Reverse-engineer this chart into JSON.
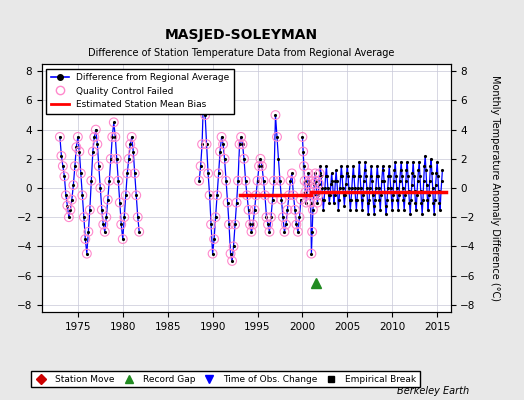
{
  "title": "MASJED-SOLEYMAN",
  "subtitle": "Difference of Station Temperature Data from Regional Average",
  "ylabel": "Monthly Temperature Anomaly Difference (°C)",
  "xlabel_note": "Berkeley Earth",
  "xlim": [
    1971.0,
    2016.5
  ],
  "ylim": [
    -8.5,
    8.5
  ],
  "yticks": [
    -8,
    -6,
    -4,
    -2,
    0,
    2,
    4,
    6,
    8
  ],
  "xticks": [
    1975,
    1980,
    1985,
    1990,
    1995,
    2000,
    2005,
    2010,
    2015
  ],
  "background_color": "#e8e8e8",
  "plot_bg_color": "#ffffff",
  "grid_color": "#c8c8d8",
  "mean_bias_start_1": 1993.0,
  "mean_bias_end_1": 2001.0,
  "mean_bias_value_1": -0.5,
  "mean_bias_start_2": 2001.0,
  "mean_bias_end_2": 2016.0,
  "mean_bias_value_2": -0.3,
  "record_gap_x": 2001.5,
  "record_gap_y": -6.5,
  "data_early": [
    [
      1973.0,
      3.5
    ],
    [
      1973.17,
      2.2
    ],
    [
      1973.33,
      1.5
    ],
    [
      1973.5,
      0.8
    ],
    [
      1973.67,
      -0.5
    ],
    [
      1973.83,
      -1.2
    ],
    [
      1974.0,
      -2.0
    ],
    [
      1974.17,
      -1.5
    ],
    [
      1974.33,
      -0.8
    ],
    [
      1974.5,
      0.2
    ],
    [
      1974.67,
      1.5
    ],
    [
      1974.83,
      2.8
    ],
    [
      1975.0,
      3.5
    ],
    [
      1975.17,
      2.5
    ],
    [
      1975.33,
      1.0
    ],
    [
      1975.5,
      -0.5
    ],
    [
      1975.67,
      -2.0
    ],
    [
      1975.83,
      -3.5
    ],
    [
      1976.0,
      -4.5
    ],
    [
      1976.17,
      -3.0
    ],
    [
      1976.33,
      -1.5
    ],
    [
      1976.5,
      0.5
    ],
    [
      1976.67,
      2.5
    ],
    [
      1976.83,
      3.5
    ],
    [
      1977.0,
      4.0
    ],
    [
      1977.17,
      3.0
    ],
    [
      1977.33,
      1.5
    ],
    [
      1977.5,
      0.0
    ],
    [
      1977.67,
      -1.5
    ],
    [
      1977.83,
      -2.5
    ],
    [
      1978.0,
      -3.0
    ],
    [
      1978.17,
      -2.0
    ],
    [
      1978.33,
      -0.8
    ],
    [
      1978.5,
      0.5
    ],
    [
      1978.67,
      2.0
    ],
    [
      1978.83,
      3.5
    ],
    [
      1979.0,
      4.5
    ],
    [
      1979.17,
      3.5
    ],
    [
      1979.33,
      2.0
    ],
    [
      1979.5,
      0.5
    ],
    [
      1979.67,
      -1.0
    ],
    [
      1979.83,
      -2.5
    ],
    [
      1980.0,
      -3.5
    ],
    [
      1980.17,
      -2.0
    ],
    [
      1980.33,
      -0.5
    ],
    [
      1980.5,
      1.0
    ],
    [
      1980.67,
      2.0
    ],
    [
      1980.83,
      3.0
    ],
    [
      1981.0,
      3.5
    ],
    [
      1981.17,
      2.5
    ],
    [
      1981.33,
      1.0
    ],
    [
      1981.5,
      -0.5
    ],
    [
      1981.67,
      -2.0
    ],
    [
      1981.83,
      -3.0
    ]
  ],
  "data_mid1": [
    [
      1988.5,
      0.5
    ],
    [
      1988.67,
      1.5
    ],
    [
      1988.83,
      3.0
    ],
    [
      1989.0,
      6.5
    ],
    [
      1989.17,
      5.0
    ],
    [
      1989.33,
      3.0
    ],
    [
      1989.5,
      1.0
    ],
    [
      1989.67,
      -0.5
    ],
    [
      1989.83,
      -2.5
    ],
    [
      1990.0,
      -4.5
    ],
    [
      1990.17,
      -3.5
    ],
    [
      1990.33,
      -2.0
    ],
    [
      1990.5,
      -0.5
    ],
    [
      1990.67,
      1.0
    ],
    [
      1990.83,
      2.5
    ],
    [
      1991.0,
      3.5
    ],
    [
      1991.17,
      3.0
    ],
    [
      1991.33,
      2.0
    ],
    [
      1991.5,
      0.5
    ],
    [
      1991.67,
      -1.0
    ],
    [
      1991.83,
      -2.5
    ],
    [
      1992.0,
      -4.5
    ],
    [
      1992.17,
      -5.0
    ],
    [
      1992.33,
      -4.0
    ],
    [
      1992.5,
      -2.5
    ],
    [
      1992.67,
      -1.0
    ],
    [
      1992.83,
      0.5
    ],
    [
      1993.0,
      3.0
    ],
    [
      1993.17,
      3.5
    ],
    [
      1993.33,
      3.0
    ],
    [
      1993.5,
      2.0
    ],
    [
      1993.67,
      0.5
    ],
    [
      1993.83,
      -0.5
    ],
    [
      1994.0,
      -1.5
    ],
    [
      1994.17,
      -2.5
    ],
    [
      1994.33,
      -3.0
    ],
    [
      1994.5,
      -2.5
    ],
    [
      1994.67,
      -1.5
    ],
    [
      1994.83,
      -0.5
    ],
    [
      1995.0,
      0.5
    ],
    [
      1995.17,
      1.5
    ],
    [
      1995.33,
      2.0
    ],
    [
      1995.5,
      1.5
    ],
    [
      1995.67,
      0.5
    ],
    [
      1995.83,
      -0.5
    ],
    [
      1996.0,
      -2.0
    ],
    [
      1996.17,
      -2.5
    ],
    [
      1996.33,
      -3.0
    ],
    [
      1996.5,
      -2.0
    ],
    [
      1996.67,
      -0.8
    ],
    [
      1996.83,
      0.5
    ],
    [
      1997.0,
      5.0
    ],
    [
      1997.17,
      3.5
    ],
    [
      1997.33,
      2.0
    ],
    [
      1997.5,
      0.5
    ],
    [
      1997.67,
      -0.8
    ],
    [
      1997.83,
      -2.0
    ],
    [
      1998.0,
      -3.0
    ],
    [
      1998.17,
      -2.5
    ],
    [
      1998.33,
      -1.5
    ],
    [
      1998.5,
      -0.5
    ],
    [
      1998.67,
      0.5
    ],
    [
      1998.83,
      1.0
    ],
    [
      1999.0,
      -0.5
    ],
    [
      1999.17,
      -1.5
    ],
    [
      1999.33,
      -2.5
    ],
    [
      1999.5,
      -3.0
    ],
    [
      1999.67,
      -2.0
    ],
    [
      1999.83,
      -0.8
    ]
  ],
  "data_modern": [
    [
      2000.0,
      3.5
    ],
    [
      2000.083,
      2.5
    ],
    [
      2000.17,
      1.5
    ],
    [
      2000.25,
      0.5
    ],
    [
      2000.33,
      -0.3
    ],
    [
      2000.42,
      -1.0
    ],
    [
      2000.5,
      -0.5
    ],
    [
      2000.58,
      0.3
    ],
    [
      2000.67,
      1.0
    ],
    [
      2000.75,
      0.5
    ],
    [
      2000.83,
      -0.3
    ],
    [
      2000.92,
      -1.0
    ],
    [
      2001.0,
      -4.5
    ],
    [
      2001.083,
      -3.0
    ],
    [
      2001.17,
      -1.5
    ],
    [
      2001.25,
      -0.5
    ],
    [
      2001.33,
      0.3
    ],
    [
      2001.42,
      1.0
    ],
    [
      2001.5,
      0.5
    ],
    [
      2001.58,
      -0.3
    ],
    [
      2001.67,
      -1.0
    ],
    [
      2001.75,
      -0.5
    ],
    [
      2001.83,
      0.3
    ],
    [
      2001.92,
      1.0
    ],
    [
      2002.0,
      1.5
    ],
    [
      2002.083,
      0.8
    ],
    [
      2002.17,
      0.0
    ],
    [
      2002.25,
      -0.8
    ],
    [
      2002.33,
      -1.5
    ],
    [
      2002.42,
      -0.8
    ],
    [
      2002.5,
      0.0
    ],
    [
      2002.58,
      0.8
    ],
    [
      2002.67,
      1.5
    ],
    [
      2002.75,
      0.8
    ],
    [
      2002.83,
      0.0
    ],
    [
      2002.92,
      -0.5
    ],
    [
      2003.0,
      -1.0
    ],
    [
      2003.083,
      -0.5
    ],
    [
      2003.17,
      0.3
    ],
    [
      2003.25,
      1.0
    ],
    [
      2003.33,
      0.5
    ],
    [
      2003.42,
      -0.3
    ],
    [
      2003.5,
      -1.0
    ],
    [
      2003.58,
      -0.5
    ],
    [
      2003.67,
      0.5
    ],
    [
      2003.75,
      1.2
    ],
    [
      2003.83,
      0.5
    ],
    [
      2003.92,
      -0.3
    ],
    [
      2004.0,
      -1.5
    ],
    [
      2004.083,
      -0.8
    ],
    [
      2004.17,
      0.0
    ],
    [
      2004.25,
      0.8
    ],
    [
      2004.33,
      1.5
    ],
    [
      2004.42,
      0.8
    ],
    [
      2004.5,
      0.0
    ],
    [
      2004.58,
      -0.5
    ],
    [
      2004.67,
      -1.2
    ],
    [
      2004.75,
      -0.5
    ],
    [
      2004.83,
      0.3
    ],
    [
      2004.92,
      1.0
    ],
    [
      2005.0,
      1.5
    ],
    [
      2005.083,
      0.8
    ],
    [
      2005.17,
      0.0
    ],
    [
      2005.25,
      -0.8
    ],
    [
      2005.33,
      -1.5
    ],
    [
      2005.42,
      -0.8
    ],
    [
      2005.5,
      0.0
    ],
    [
      2005.58,
      0.8
    ],
    [
      2005.67,
      1.5
    ],
    [
      2005.75,
      0.8
    ],
    [
      2005.83,
      0.0
    ],
    [
      2005.92,
      -0.8
    ],
    [
      2006.0,
      -1.5
    ],
    [
      2006.083,
      -0.8
    ],
    [
      2006.17,
      0.0
    ],
    [
      2006.25,
      0.8
    ],
    [
      2006.33,
      1.8
    ],
    [
      2006.42,
      0.8
    ],
    [
      2006.5,
      0.0
    ],
    [
      2006.58,
      -0.8
    ],
    [
      2006.67,
      -1.5
    ],
    [
      2006.75,
      -0.5
    ],
    [
      2006.83,
      0.5
    ],
    [
      2006.92,
      1.2
    ],
    [
      2007.0,
      1.8
    ],
    [
      2007.083,
      0.8
    ],
    [
      2007.17,
      0.0
    ],
    [
      2007.25,
      -1.0
    ],
    [
      2007.33,
      -1.8
    ],
    [
      2007.42,
      -0.8
    ],
    [
      2007.5,
      0.0
    ],
    [
      2007.58,
      0.8
    ],
    [
      2007.67,
      1.5
    ],
    [
      2007.75,
      0.5
    ],
    [
      2007.83,
      -0.5
    ],
    [
      2007.92,
      -1.2
    ],
    [
      2008.0,
      -1.8
    ],
    [
      2008.083,
      -0.8
    ],
    [
      2008.17,
      0.0
    ],
    [
      2008.25,
      0.8
    ],
    [
      2008.33,
      1.5
    ],
    [
      2008.42,
      0.8
    ],
    [
      2008.5,
      0.0
    ],
    [
      2008.58,
      -0.8
    ],
    [
      2008.67,
      -1.5
    ],
    [
      2008.75,
      -0.5
    ],
    [
      2008.83,
      0.5
    ],
    [
      2008.92,
      1.2
    ],
    [
      2009.0,
      1.5
    ],
    [
      2009.083,
      0.5
    ],
    [
      2009.17,
      -0.3
    ],
    [
      2009.25,
      -1.2
    ],
    [
      2009.33,
      -1.8
    ],
    [
      2009.42,
      -0.8
    ],
    [
      2009.5,
      0.0
    ],
    [
      2009.58,
      0.8
    ],
    [
      2009.67,
      1.5
    ],
    [
      2009.75,
      0.8
    ],
    [
      2009.83,
      0.0
    ],
    [
      2009.92,
      -0.8
    ],
    [
      2010.0,
      -1.5
    ],
    [
      2010.083,
      -0.5
    ],
    [
      2010.17,
      0.5
    ],
    [
      2010.25,
      1.2
    ],
    [
      2010.33,
      1.8
    ],
    [
      2010.42,
      0.8
    ],
    [
      2010.5,
      0.0
    ],
    [
      2010.58,
      -0.8
    ],
    [
      2010.67,
      -1.5
    ],
    [
      2010.75,
      -0.5
    ],
    [
      2010.83,
      0.5
    ],
    [
      2010.92,
      1.2
    ],
    [
      2011.0,
      1.8
    ],
    [
      2011.083,
      0.8
    ],
    [
      2011.17,
      0.0
    ],
    [
      2011.25,
      -0.8
    ],
    [
      2011.33,
      -1.5
    ],
    [
      2011.42,
      -0.5
    ],
    [
      2011.5,
      0.5
    ],
    [
      2011.58,
      1.2
    ],
    [
      2011.67,
      1.8
    ],
    [
      2011.75,
      0.8
    ],
    [
      2011.83,
      -0.2
    ],
    [
      2011.92,
      -1.0
    ],
    [
      2012.0,
      -1.8
    ],
    [
      2012.083,
      -0.8
    ],
    [
      2012.17,
      0.2
    ],
    [
      2012.25,
      1.0
    ],
    [
      2012.33,
      1.8
    ],
    [
      2012.42,
      0.8
    ],
    [
      2012.5,
      -0.2
    ],
    [
      2012.58,
      -1.0
    ],
    [
      2012.67,
      -1.5
    ],
    [
      2012.75,
      -0.5
    ],
    [
      2012.83,
      0.5
    ],
    [
      2012.92,
      1.2
    ],
    [
      2013.0,
      1.8
    ],
    [
      2013.083,
      0.8
    ],
    [
      2013.17,
      -0.2
    ],
    [
      2013.25,
      -1.0
    ],
    [
      2013.33,
      -1.8
    ],
    [
      2013.42,
      -0.8
    ],
    [
      2013.5,
      0.5
    ],
    [
      2013.58,
      1.5
    ],
    [
      2013.67,
      2.2
    ],
    [
      2013.75,
      1.2
    ],
    [
      2013.83,
      0.2
    ],
    [
      2013.92,
      -0.8
    ],
    [
      2014.0,
      -1.5
    ],
    [
      2014.083,
      -0.5
    ],
    [
      2014.17,
      0.5
    ],
    [
      2014.25,
      1.5
    ],
    [
      2014.33,
      2.0
    ],
    [
      2014.42,
      1.0
    ],
    [
      2014.5,
      0.0
    ],
    [
      2014.58,
      -1.0
    ],
    [
      2014.67,
      -1.8
    ],
    [
      2014.75,
      -0.8
    ],
    [
      2014.83,
      0.2
    ],
    [
      2014.92,
      1.0
    ],
    [
      2015.0,
      1.8
    ],
    [
      2015.083,
      0.8
    ],
    [
      2015.17,
      -0.2
    ],
    [
      2015.25,
      -1.0
    ],
    [
      2015.33,
      -1.5
    ],
    [
      2015.42,
      -0.3
    ],
    [
      2015.5,
      0.5
    ],
    [
      2015.58,
      1.2
    ]
  ],
  "qc_failed_early": [
    [
      1973.0,
      3.5
    ],
    [
      1973.17,
      2.2
    ],
    [
      1973.33,
      1.5
    ],
    [
      1973.5,
      0.8
    ],
    [
      1973.67,
      -0.5
    ],
    [
      1973.83,
      -1.2
    ],
    [
      1974.0,
      -2.0
    ],
    [
      1974.17,
      -1.5
    ],
    [
      1974.33,
      -0.8
    ],
    [
      1974.5,
      0.2
    ],
    [
      1974.67,
      1.5
    ],
    [
      1974.83,
      2.8
    ],
    [
      1975.0,
      3.5
    ],
    [
      1975.17,
      2.5
    ],
    [
      1975.33,
      1.0
    ],
    [
      1975.5,
      -0.5
    ],
    [
      1975.67,
      -2.0
    ],
    [
      1975.83,
      -3.5
    ],
    [
      1976.0,
      -4.5
    ],
    [
      1976.17,
      -3.0
    ],
    [
      1976.33,
      -1.5
    ],
    [
      1976.5,
      0.5
    ],
    [
      1976.67,
      2.5
    ],
    [
      1976.83,
      3.5
    ],
    [
      1977.0,
      4.0
    ],
    [
      1977.17,
      3.0
    ],
    [
      1977.33,
      1.5
    ],
    [
      1977.5,
      0.0
    ],
    [
      1977.67,
      -1.5
    ],
    [
      1977.83,
      -2.5
    ],
    [
      1978.0,
      -3.0
    ],
    [
      1978.17,
      -2.0
    ],
    [
      1978.33,
      -0.8
    ],
    [
      1978.5,
      0.5
    ],
    [
      1978.67,
      2.0
    ],
    [
      1978.83,
      3.5
    ],
    [
      1979.0,
      4.5
    ],
    [
      1979.17,
      3.5
    ],
    [
      1979.33,
      2.0
    ],
    [
      1979.5,
      0.5
    ],
    [
      1979.67,
      -1.0
    ],
    [
      1979.83,
      -2.5
    ],
    [
      1980.0,
      -3.5
    ],
    [
      1980.17,
      -2.0
    ],
    [
      1980.33,
      -0.5
    ],
    [
      1980.5,
      1.0
    ],
    [
      1980.67,
      2.0
    ],
    [
      1980.83,
      3.0
    ],
    [
      1981.0,
      3.5
    ],
    [
      1981.17,
      2.5
    ],
    [
      1981.33,
      1.0
    ],
    [
      1981.5,
      -0.5
    ],
    [
      1981.67,
      -2.0
    ],
    [
      1981.83,
      -3.0
    ]
  ],
  "qc_failed_mid": [
    [
      1988.5,
      0.5
    ],
    [
      1988.67,
      1.5
    ],
    [
      1988.83,
      3.0
    ],
    [
      1989.0,
      6.5
    ],
    [
      1989.17,
      5.0
    ],
    [
      1989.33,
      3.0
    ],
    [
      1989.5,
      1.0
    ],
    [
      1989.67,
      -0.5
    ],
    [
      1989.83,
      -2.5
    ],
    [
      1990.0,
      -4.5
    ],
    [
      1990.17,
      -3.5
    ],
    [
      1990.33,
      -2.0
    ],
    [
      1990.5,
      -0.5
    ],
    [
      1990.67,
      1.0
    ],
    [
      1990.83,
      2.5
    ],
    [
      1991.0,
      3.5
    ],
    [
      1991.17,
      3.0
    ],
    [
      1991.33,
      2.0
    ],
    [
      1991.5,
      0.5
    ],
    [
      1991.67,
      -1.0
    ],
    [
      1991.83,
      -2.5
    ],
    [
      1992.0,
      -4.5
    ],
    [
      1992.17,
      -5.0
    ],
    [
      1992.33,
      -4.0
    ],
    [
      1992.5,
      -2.5
    ],
    [
      1992.67,
      -1.0
    ],
    [
      1992.83,
      0.5
    ],
    [
      1993.0,
      3.0
    ],
    [
      1993.17,
      3.5
    ],
    [
      1993.33,
      3.0
    ],
    [
      1993.5,
      2.0
    ],
    [
      1993.67,
      0.5
    ],
    [
      1993.83,
      -0.5
    ],
    [
      1994.0,
      -1.5
    ],
    [
      1994.17,
      -2.5
    ],
    [
      1994.33,
      -3.0
    ],
    [
      1994.5,
      -2.5
    ],
    [
      1994.67,
      -1.5
    ],
    [
      1994.83,
      -0.5
    ],
    [
      1995.0,
      0.5
    ],
    [
      1995.17,
      1.5
    ],
    [
      1995.33,
      2.0
    ],
    [
      1995.5,
      1.5
    ],
    [
      1995.67,
      0.5
    ],
    [
      1995.83,
      -0.5
    ],
    [
      1996.0,
      -2.0
    ],
    [
      1996.17,
      -2.5
    ],
    [
      1996.33,
      -3.0
    ],
    [
      1996.5,
      -2.0
    ],
    [
      1996.67,
      -0.8
    ],
    [
      1996.83,
      0.5
    ],
    [
      1997.0,
      5.0
    ],
    [
      1997.17,
      3.5
    ],
    [
      1997.5,
      0.5
    ],
    [
      1997.67,
      -0.8
    ],
    [
      1997.83,
      -2.0
    ],
    [
      1998.0,
      -3.0
    ],
    [
      1998.17,
      -2.5
    ],
    [
      1998.33,
      -1.5
    ],
    [
      1998.5,
      -0.5
    ],
    [
      1998.67,
      0.5
    ],
    [
      1998.83,
      1.0
    ],
    [
      1999.0,
      -0.5
    ],
    [
      1999.17,
      -1.5
    ],
    [
      1999.33,
      -2.5
    ],
    [
      1999.5,
      -3.0
    ],
    [
      1999.67,
      -2.0
    ],
    [
      1999.83,
      -0.8
    ]
  ],
  "qc_failed_2000": [
    [
      2000.0,
      3.5
    ],
    [
      2000.083,
      2.5
    ],
    [
      2000.17,
      1.5
    ],
    [
      2000.25,
      0.5
    ],
    [
      2000.33,
      -0.3
    ],
    [
      2000.42,
      -1.0
    ],
    [
      2000.5,
      -0.5
    ],
    [
      2000.58,
      0.3
    ],
    [
      2000.67,
      1.0
    ],
    [
      2000.75,
      0.5
    ],
    [
      2000.83,
      -0.3
    ],
    [
      2000.92,
      -1.0
    ],
    [
      2001.0,
      -4.5
    ],
    [
      2001.083,
      -3.0
    ],
    [
      2001.17,
      -1.5
    ],
    [
      2001.25,
      -0.5
    ],
    [
      2001.33,
      0.3
    ],
    [
      2001.42,
      1.0
    ],
    [
      2001.5,
      0.5
    ],
    [
      2001.58,
      -0.3
    ],
    [
      2001.67,
      -1.0
    ],
    [
      2001.75,
      -0.5
    ],
    [
      2001.83,
      0.3
    ],
    [
      2001.92,
      1.0
    ]
  ]
}
